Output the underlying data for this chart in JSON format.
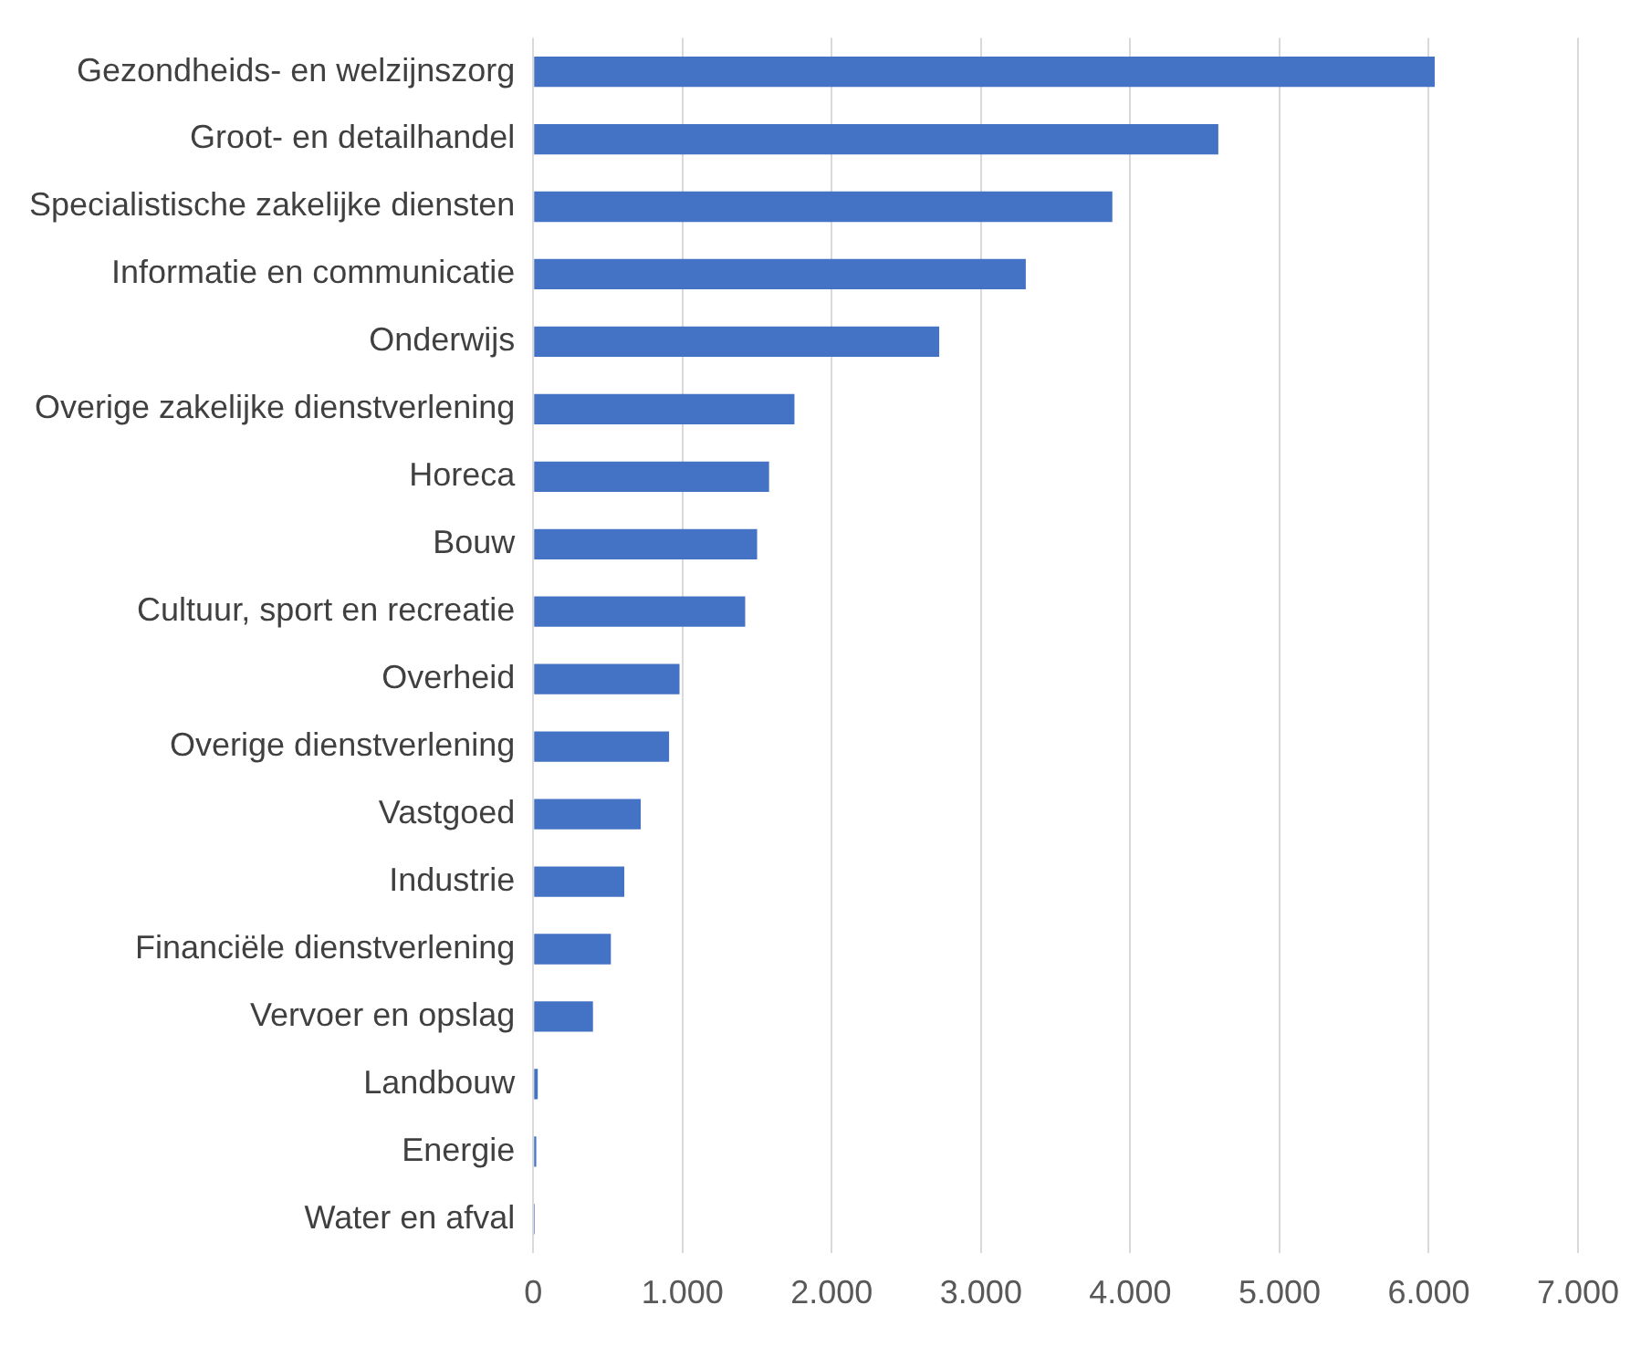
{
  "chart_data": {
    "type": "bar",
    "orientation": "horizontal",
    "categories": [
      "Gezondheids- en welzijnszorg",
      "Groot- en detailhandel",
      "Specialistische zakelijke diensten",
      "Informatie en communicatie",
      "Onderwijs",
      "Overige zakelijke dienstverlening",
      "Horeca",
      "Bouw",
      "Cultuur, sport en recreatie",
      "Overheid",
      "Overige dienstverlening",
      "Vastgoed",
      "Industrie",
      "Financiële dienstverlening",
      "Vervoer en opslag",
      "Landbouw",
      "Energie",
      "Water en afval"
    ],
    "values": [
      6040,
      4590,
      3880,
      3300,
      2720,
      1750,
      1580,
      1500,
      1420,
      980,
      910,
      720,
      610,
      520,
      400,
      30,
      20,
      10
    ],
    "color": "#4472c4",
    "xlim": [
      0,
      7000
    ],
    "xticks": [
      {
        "value": 0,
        "label": "0"
      },
      {
        "value": 1000,
        "label": "1.000"
      },
      {
        "value": 2000,
        "label": "2.000"
      },
      {
        "value": 3000,
        "label": "3.000"
      },
      {
        "value": 4000,
        "label": "4.000"
      },
      {
        "value": 5000,
        "label": "5.000"
      },
      {
        "value": 6000,
        "label": "6.000"
      },
      {
        "value": 7000,
        "label": "7.000"
      }
    ],
    "grid": "x",
    "legend": false
  }
}
